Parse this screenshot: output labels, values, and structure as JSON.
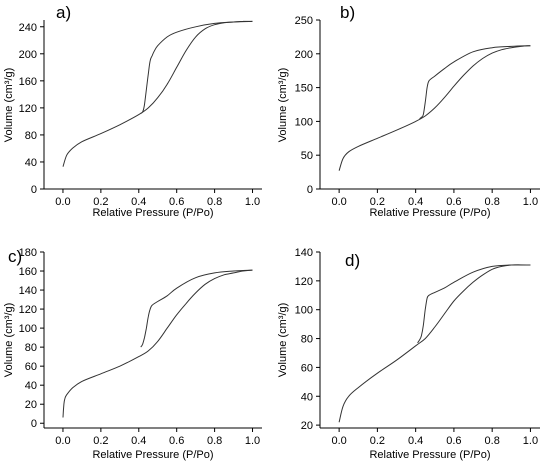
{
  "chart_data": [
    {
      "type": "line",
      "panel_label": "a)",
      "xlabel": "Relative Pressure (P/Po)",
      "ylabel": "Volume (cm³/g)",
      "xlim": [
        -0.1,
        1.05
      ],
      "ylim": [
        0,
        250
      ],
      "xticks": [
        "0.0",
        "0.2",
        "0.4",
        "0.6",
        "0.8",
        "1.0"
      ],
      "yticks": [
        "0",
        "40",
        "80",
        "120",
        "160",
        "200",
        "240"
      ],
      "series": [
        {
          "x": [
            0.0,
            0.02,
            0.05,
            0.1,
            0.2,
            0.3,
            0.4,
            0.45,
            0.5,
            0.55,
            0.6,
            0.65,
            0.7,
            0.75,
            0.8,
            0.85,
            0.9,
            0.95,
            1.0
          ],
          "y": [
            33,
            50,
            60,
            70,
            82,
            95,
            110,
            120,
            135,
            155,
            180,
            205,
            225,
            237,
            243,
            246,
            247,
            248,
            248
          ]
        },
        {
          "x": [
            1.0,
            0.9,
            0.8,
            0.7,
            0.6,
            0.55,
            0.5,
            0.48,
            0.47,
            0.46,
            0.45,
            0.43,
            0.42,
            0.41
          ],
          "y": [
            248,
            247,
            245,
            240,
            232,
            225,
            212,
            203,
            197,
            190,
            170,
            125,
            114,
            112
          ]
        }
      ]
    },
    {
      "type": "line",
      "panel_label": "b)",
      "xlabel": "Relative Pressure (P/Po)",
      "ylabel": "Volume (cm³/g)",
      "xlim": [
        -0.1,
        1.05
      ],
      "ylim": [
        0,
        250
      ],
      "xticks": [
        "0.0",
        "0.2",
        "0.4",
        "0.6",
        "0.8",
        "1.0"
      ],
      "yticks": [
        "0",
        "50",
        "100",
        "150",
        "200",
        "250"
      ],
      "series": [
        {
          "x": [
            0.0,
            0.02,
            0.05,
            0.1,
            0.2,
            0.3,
            0.4,
            0.45,
            0.5,
            0.55,
            0.6,
            0.65,
            0.7,
            0.75,
            0.8,
            0.85,
            0.9,
            0.95,
            1.0
          ],
          "y": [
            27,
            45,
            55,
            63,
            75,
            87,
            100,
            108,
            120,
            135,
            152,
            168,
            182,
            193,
            201,
            206,
            209,
            211,
            212
          ]
        },
        {
          "x": [
            1.0,
            0.9,
            0.8,
            0.7,
            0.6,
            0.55,
            0.5,
            0.47,
            0.46,
            0.45,
            0.44,
            0.43,
            0.42
          ],
          "y": [
            212,
            211,
            209,
            203,
            188,
            178,
            167,
            160,
            150,
            128,
            110,
            106,
            104
          ]
        }
      ]
    },
    {
      "type": "line",
      "panel_label": "c)",
      "xlabel": "Relative Pressure (P/Po)",
      "ylabel": "Volume (cm³/g)",
      "xlim": [
        -0.1,
        1.05
      ],
      "ylim": [
        -5,
        180
      ],
      "xticks": [
        "0.0",
        "0.2",
        "0.4",
        "0.6",
        "0.8",
        "1.0"
      ],
      "yticks": [
        "0",
        "20",
        "40",
        "60",
        "80",
        "100",
        "120",
        "140",
        "160",
        "180"
      ],
      "series": [
        {
          "x": [
            0.0,
            0.005,
            0.01,
            0.02,
            0.05,
            0.1,
            0.2,
            0.3,
            0.4,
            0.45,
            0.5,
            0.55,
            0.6,
            0.65,
            0.7,
            0.75,
            0.8,
            0.85,
            0.9,
            0.95,
            1.0
          ],
          "y": [
            6,
            20,
            26,
            30,
            37,
            44,
            52,
            60,
            70,
            76,
            86,
            100,
            114,
            126,
            137,
            146,
            152,
            156,
            158,
            160,
            161
          ]
        },
        {
          "x": [
            1.0,
            0.9,
            0.8,
            0.7,
            0.6,
            0.55,
            0.5,
            0.47,
            0.46,
            0.45,
            0.44,
            0.43,
            0.42,
            0.41
          ],
          "y": [
            161,
            160,
            158,
            153,
            142,
            134,
            128,
            124,
            120,
            112,
            100,
            90,
            83,
            80
          ]
        }
      ]
    },
    {
      "type": "line",
      "panel_label": "d)",
      "xlabel": "Relative Pressure (P/Po)",
      "ylabel": "Volume (cm³/g)",
      "xlim": [
        -0.1,
        1.05
      ],
      "ylim": [
        18,
        140
      ],
      "xticks": [
        "0.0",
        "0.2",
        "0.4",
        "0.6",
        "0.8",
        "1.0"
      ],
      "yticks": [
        "20",
        "40",
        "60",
        "80",
        "100",
        "120",
        "140"
      ],
      "series": [
        {
          "x": [
            0.0,
            0.02,
            0.05,
            0.1,
            0.2,
            0.3,
            0.4,
            0.45,
            0.5,
            0.55,
            0.6,
            0.65,
            0.7,
            0.75,
            0.8,
            0.85,
            0.9,
            0.95,
            1.0
          ],
          "y": [
            22,
            33,
            40,
            46,
            56,
            65,
            75,
            80,
            88,
            97,
            106,
            113,
            119,
            124,
            128,
            130,
            131,
            131,
            131
          ]
        },
        {
          "x": [
            1.0,
            0.9,
            0.8,
            0.7,
            0.6,
            0.55,
            0.5,
            0.47,
            0.46,
            0.45,
            0.44,
            0.43,
            0.42,
            0.41
          ],
          "y": [
            131,
            131,
            130,
            126,
            119,
            115,
            112,
            110,
            108,
            100,
            89,
            82,
            79,
            77
          ]
        }
      ]
    }
  ]
}
